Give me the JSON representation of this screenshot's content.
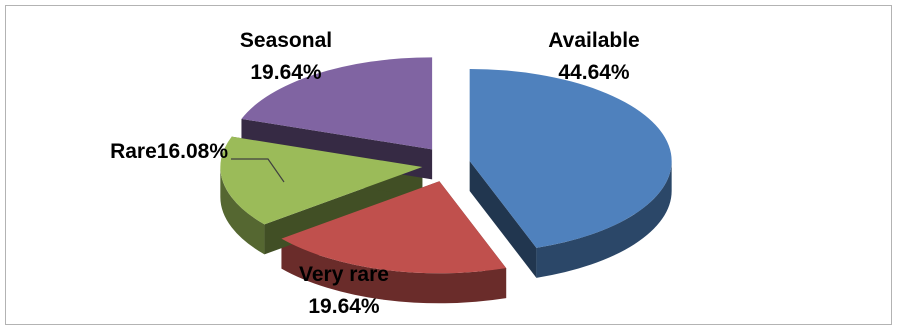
{
  "chart_data": {
    "type": "pie",
    "style": "3d-exploded",
    "title": "",
    "legend": "none",
    "slices": [
      {
        "category": "Available",
        "value": 44.64,
        "color": "#4f81bd",
        "label_name": "Available",
        "label_value": "44.64%"
      },
      {
        "category": "Very rare",
        "value": 19.64,
        "color": "#c0504d",
        "label_name": "Very rare",
        "label_value": "19.64%"
      },
      {
        "category": "Rare",
        "value": 16.08,
        "color": "#9bbb59",
        "label_name": "Rare",
        "label_value": "16.08%"
      },
      {
        "category": "Seasonal",
        "value": 19.64,
        "color": "#8064a2",
        "label_name": "Seasonal",
        "label_value": "19.64%"
      }
    ]
  }
}
